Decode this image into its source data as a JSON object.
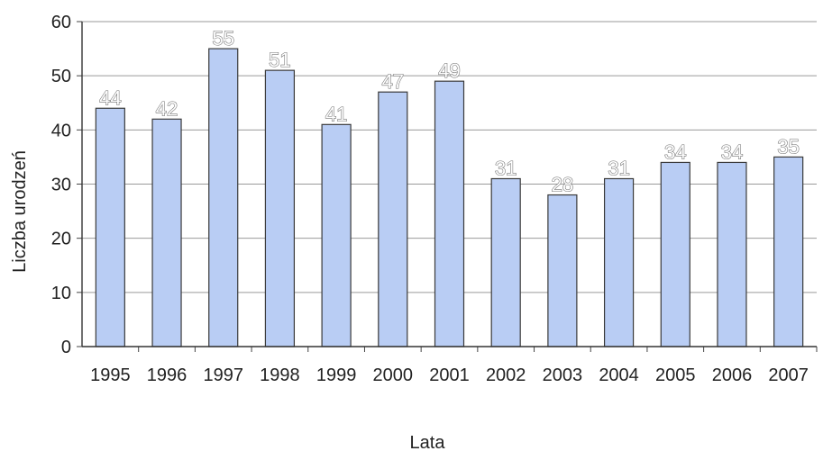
{
  "chart_data": {
    "type": "bar",
    "categories": [
      "1995",
      "1996",
      "1997",
      "1998",
      "1999",
      "2000",
      "2001",
      "2002",
      "2003",
      "2004",
      "2005",
      "2006",
      "2007"
    ],
    "values": [
      44,
      42,
      55,
      51,
      41,
      47,
      49,
      31,
      28,
      31,
      34,
      34,
      35
    ],
    "data_labels": [
      "44",
      "42",
      "55",
      "51",
      "41",
      "47",
      "49",
      "31",
      "28",
      "31",
      "34",
      "34",
      "35"
    ],
    "y_ticks": [
      "0",
      "10",
      "20",
      "30",
      "40",
      "50",
      "60"
    ],
    "ylim": [
      0,
      60
    ],
    "xlabel": "Lata",
    "ylabel": "Liczba urodzeń",
    "grid": true,
    "bar_color": "#b9cdf4",
    "bar_edge_color": "#3a3a3a",
    "grid_color": "#9a9a9a"
  }
}
